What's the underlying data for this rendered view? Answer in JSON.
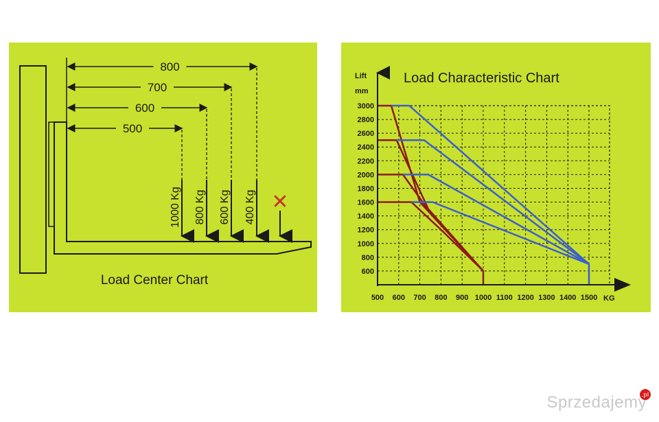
{
  "left_chart": {
    "title": "Load Center Chart",
    "dimensions": [
      {
        "label": "800",
        "load": "400 Kg"
      },
      {
        "label": "700",
        "load": "600 Kg"
      },
      {
        "label": "600",
        "load": "800 Kg"
      },
      {
        "label": "500",
        "load": "1000 Kg"
      }
    ],
    "forbidden_mark": "✕",
    "colors": {
      "background": "#c8e12e",
      "line": "#1a1a1a",
      "cross": "#c0392b"
    }
  },
  "chart_data": {
    "type": "line",
    "title": "Load Characteristic Chart",
    "ylabel": "Lift",
    "yunit": "mm",
    "xlabel": "KG",
    "xlim": [
      500,
      1500
    ],
    "ylim": [
      400,
      3000
    ],
    "x_ticks": [
      500,
      600,
      700,
      800,
      900,
      1000,
      1100,
      1200,
      1300,
      1400,
      1500
    ],
    "y_ticks": [
      600,
      800,
      1000,
      1200,
      1400,
      1600,
      1800,
      2000,
      2200,
      2400,
      2600,
      2800,
      3000
    ],
    "grid": true,
    "series": [
      {
        "color": "#8b1a1a",
        "points": [
          [
            500,
            3000
          ],
          [
            565,
            3000
          ],
          [
            700,
            1600
          ],
          [
            1000,
            600
          ]
        ]
      },
      {
        "color": "#8b1a1a",
        "points": [
          [
            500,
            2500
          ],
          [
            590,
            2500
          ],
          [
            740,
            1500
          ],
          [
            1000,
            600
          ]
        ]
      },
      {
        "color": "#8b1a1a",
        "points": [
          [
            500,
            2000
          ],
          [
            620,
            2000
          ],
          [
            760,
            1400
          ],
          [
            1000,
            600
          ]
        ]
      },
      {
        "color": "#8b1a1a",
        "points": [
          [
            500,
            1600
          ],
          [
            660,
            1600
          ],
          [
            800,
            1200
          ],
          [
            1000,
            600
          ]
        ]
      },
      {
        "color": "#8b1a1a",
        "points": [
          [
            1000,
            600
          ],
          [
            1000,
            400
          ]
        ]
      },
      {
        "color": "#3a5fcd",
        "points": [
          [
            565,
            3000
          ],
          [
            650,
            3000
          ],
          [
            1500,
            700
          ]
        ]
      },
      {
        "color": "#3a5fcd",
        "points": [
          [
            590,
            2500
          ],
          [
            720,
            2500
          ],
          [
            1500,
            700
          ]
        ]
      },
      {
        "color": "#3a5fcd",
        "points": [
          [
            620,
            2000
          ],
          [
            740,
            2000
          ],
          [
            1500,
            700
          ]
        ]
      },
      {
        "color": "#3a5fcd",
        "points": [
          [
            660,
            1600
          ],
          [
            760,
            1600
          ],
          [
            1500,
            700
          ]
        ]
      },
      {
        "color": "#3a5fcd",
        "points": [
          [
            1500,
            700
          ],
          [
            1500,
            400
          ]
        ]
      }
    ]
  },
  "watermark": {
    "text": "Sprzedajemy",
    "suffix": ".pl"
  }
}
